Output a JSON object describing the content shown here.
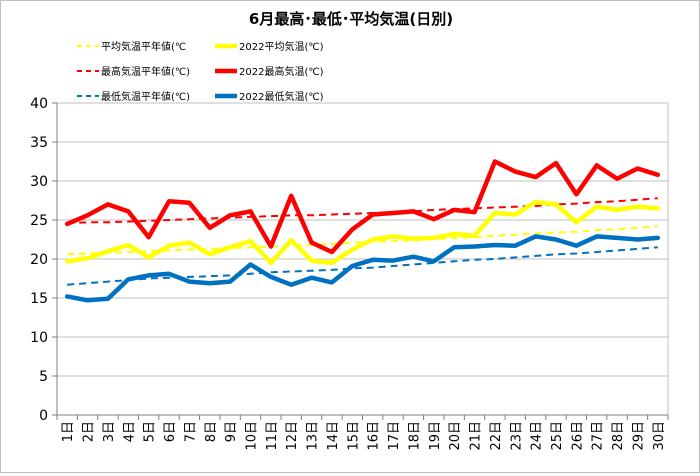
{
  "chart_data": {
    "type": "line",
    "title": "6月最高･最低･平均気温(日別)",
    "xlabel": "",
    "ylabel": "",
    "ylim": [
      0,
      40
    ],
    "yticks": [
      0,
      5,
      10,
      15,
      20,
      25,
      30,
      35,
      40
    ],
    "grid": true,
    "legend_position": "top",
    "categories": [
      "1日",
      "2日",
      "3日",
      "4日",
      "5日",
      "6日",
      "7日",
      "8日",
      "9日",
      "10日",
      "11日",
      "12日",
      "13日",
      "14日",
      "15日",
      "16日",
      "17日",
      "18日",
      "19日",
      "20日",
      "21日",
      "22日",
      "23日",
      "24日",
      "25日",
      "26日",
      "27日",
      "28日",
      "29日",
      "30日"
    ],
    "series": [
      {
        "name": "平均気温平年値(℃",
        "color": "#ffff00",
        "style": "dashed",
        "values": [
          20.6,
          20.7,
          20.8,
          20.9,
          21.0,
          21.1,
          21.2,
          21.3,
          21.4,
          21.5,
          21.6,
          21.7,
          21.8,
          21.9,
          22.1,
          22.2,
          22.3,
          22.4,
          22.6,
          22.7,
          22.8,
          23.0,
          23.1,
          23.3,
          23.4,
          23.5,
          23.7,
          23.8,
          24.0,
          24.2
        ]
      },
      {
        "name": "2022平均気温(℃)",
        "color": "#ffff00",
        "style": "solid",
        "values": [
          19.7,
          20.1,
          21.0,
          21.8,
          20.2,
          21.7,
          22.1,
          20.6,
          21.5,
          22.3,
          19.5,
          22.4,
          19.8,
          19.5,
          21.2,
          22.5,
          22.9,
          22.6,
          22.7,
          23.2,
          23.0,
          25.9,
          25.7,
          27.3,
          27.0,
          24.7,
          26.7,
          26.3,
          26.7,
          26.5
        ]
      },
      {
        "name": "最高気温平年値(℃)",
        "color": "#ff0000",
        "style": "dashed",
        "values": [
          24.6,
          24.7,
          24.7,
          24.8,
          24.9,
          25.0,
          25.1,
          25.2,
          25.3,
          25.4,
          25.5,
          25.6,
          25.6,
          25.7,
          25.8,
          25.9,
          26.0,
          26.1,
          26.3,
          26.4,
          26.5,
          26.6,
          26.7,
          26.8,
          27.0,
          27.1,
          27.3,
          27.4,
          27.6,
          27.8
        ]
      },
      {
        "name": "2022最高気温(℃)",
        "color": "#ff0000",
        "style": "solid",
        "values": [
          24.5,
          25.6,
          27.0,
          26.1,
          22.8,
          27.4,
          27.2,
          24.0,
          25.6,
          26.1,
          21.6,
          28.1,
          22.1,
          20.9,
          23.8,
          25.7,
          25.9,
          26.1,
          25.1,
          26.3,
          26.0,
          32.5,
          31.2,
          30.5,
          32.3,
          28.3,
          32.0,
          30.3,
          31.6,
          30.8
        ]
      },
      {
        "name": "最低気温平年値(℃)",
        "color": "#0070c0",
        "style": "dashed",
        "values": [
          16.7,
          16.9,
          17.1,
          17.3,
          17.5,
          17.6,
          17.7,
          17.8,
          17.9,
          18.1,
          18.3,
          18.4,
          18.5,
          18.6,
          18.8,
          18.9,
          19.1,
          19.3,
          19.5,
          19.7,
          19.9,
          20.0,
          20.2,
          20.4,
          20.6,
          20.7,
          20.9,
          21.1,
          21.3,
          21.5
        ]
      },
      {
        "name": "2022最低気温(℃)",
        "color": "#0070c0",
        "style": "solid",
        "values": [
          15.2,
          14.7,
          14.9,
          17.4,
          17.9,
          18.1,
          17.1,
          16.9,
          17.1,
          19.3,
          17.7,
          16.7,
          17.6,
          17.0,
          19.1,
          19.9,
          19.8,
          20.3,
          19.7,
          21.5,
          21.6,
          21.8,
          21.7,
          22.9,
          22.5,
          21.7,
          22.9,
          22.7,
          22.5,
          22.7
        ]
      }
    ]
  }
}
